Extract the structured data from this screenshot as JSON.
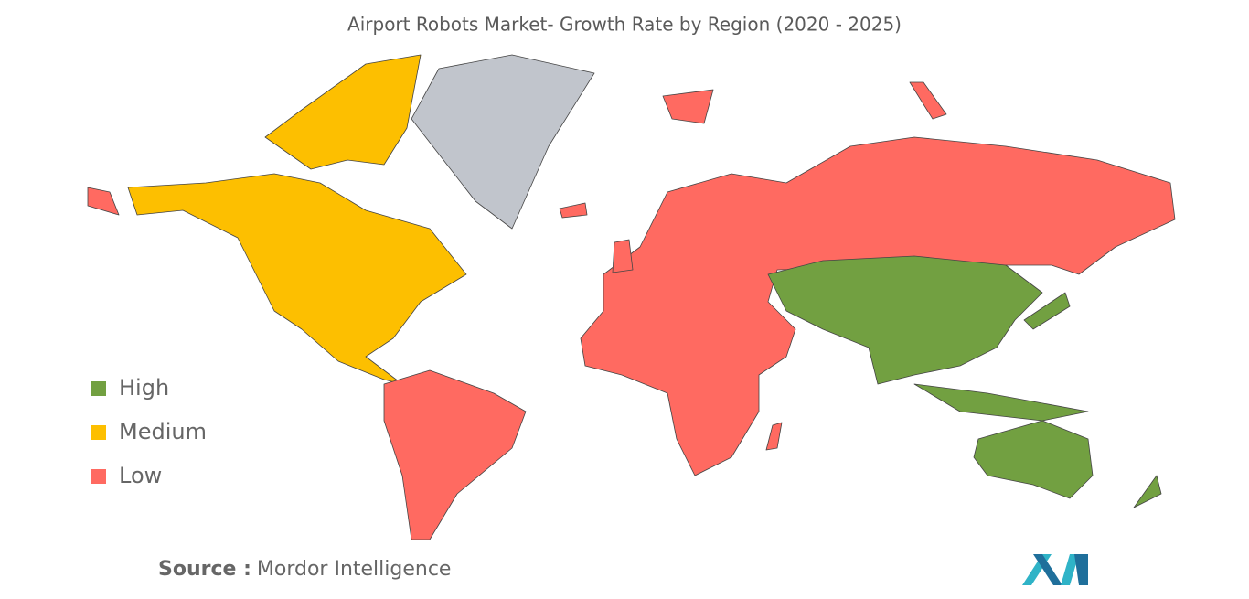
{
  "title": "Airport Robots Market- Growth Rate by Region (2020 - 2025)",
  "legend": [
    {
      "label": "High",
      "color": "#72a041"
    },
    {
      "label": "Medium",
      "color": "#fdbf00"
    },
    {
      "label": "Low",
      "color": "#ff6a61"
    }
  ],
  "source": {
    "label": "Source :",
    "text": "Mordor Intelligence"
  }
}
